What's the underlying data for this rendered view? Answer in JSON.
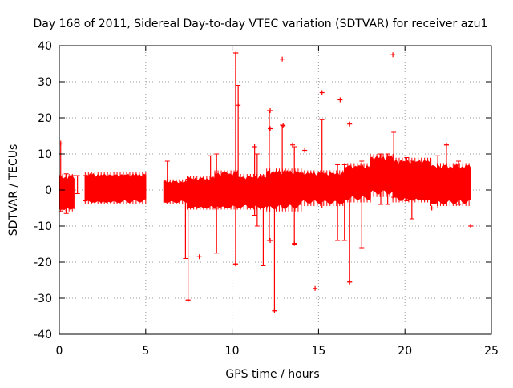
{
  "chart_data": {
    "type": "scatter",
    "title": "Day 168 of 2011, Sidereal Day-to-day VTEC variation (SDTVAR) for receiver azu1",
    "xlabel": "GPS time / hours",
    "ylabel": "SDTVAR / TECUs",
    "xlim": [
      0,
      25
    ],
    "ylim": [
      -40,
      40
    ],
    "xticks": [
      0,
      5,
      10,
      15,
      20,
      25
    ],
    "yticks": [
      -40,
      -30,
      -20,
      -10,
      0,
      10,
      20,
      30,
      40
    ],
    "grid": true,
    "marker": "+",
    "color": "#ff0000",
    "bands": [
      {
        "x0": 0.0,
        "x1": 0.85,
        "upper": 4.0,
        "lower": -5.5
      },
      {
        "x0": 1.5,
        "x1": 5.0,
        "upper": 4.5,
        "lower": -3.5
      },
      {
        "x0": 6.05,
        "x1": 7.4,
        "upper": 2.5,
        "lower": -3.5
      },
      {
        "x0": 7.4,
        "x1": 9.0,
        "upper": 3.5,
        "lower": -5.0
      },
      {
        "x0": 9.0,
        "x1": 10.3,
        "upper": 5.0,
        "lower": -5.0
      },
      {
        "x0": 10.3,
        "x1": 12.0,
        "upper": 4.0,
        "lower": -5.0
      },
      {
        "x0": 12.0,
        "x1": 14.0,
        "upper": 5.5,
        "lower": -5.5
      },
      {
        "x0": 14.0,
        "x1": 16.5,
        "upper": 5.0,
        "lower": -4.0
      },
      {
        "x0": 16.5,
        "x1": 18.0,
        "upper": 7.0,
        "lower": -3.0
      },
      {
        "x0": 18.0,
        "x1": 19.3,
        "upper": 9.5,
        "lower": -1.5
      },
      {
        "x0": 19.3,
        "x1": 21.5,
        "upper": 8.5,
        "lower": -3.0
      },
      {
        "x0": 21.5,
        "x1": 23.8,
        "upper": 7.0,
        "lower": -4.0
      }
    ],
    "spikes": [
      {
        "x": 0.08,
        "y0": -6,
        "y1": 13
      },
      {
        "x": 0.4,
        "y0": -6.5,
        "y1": 4.5
      },
      {
        "x": 0.75,
        "y0": -2,
        "y1": 4
      },
      {
        "x": 1.05,
        "y0": -1,
        "y1": 4
      },
      {
        "x": 1.5,
        "y0": -3,
        "y1": 4
      },
      {
        "x": 6.25,
        "y0": -1,
        "y1": 8
      },
      {
        "x": 7.3,
        "y0": -19,
        "y1": 2
      },
      {
        "x": 7.45,
        "y0": -30.5,
        "y1": 3
      },
      {
        "x": 8.75,
        "y0": -3,
        "y1": 9.5
      },
      {
        "x": 9.1,
        "y0": -17.5,
        "y1": 10
      },
      {
        "x": 10.2,
        "y0": -20.5,
        "y1": 38
      },
      {
        "x": 10.35,
        "y0": -5,
        "y1": 29
      },
      {
        "x": 11.3,
        "y0": -7,
        "y1": 12
      },
      {
        "x": 11.45,
        "y0": -10,
        "y1": 10
      },
      {
        "x": 11.8,
        "y0": -21,
        "y1": 4
      },
      {
        "x": 12.15,
        "y0": -14,
        "y1": 22
      },
      {
        "x": 12.45,
        "y0": -33.5,
        "y1": 3
      },
      {
        "x": 12.9,
        "y0": -5,
        "y1": 18
      },
      {
        "x": 13.6,
        "y0": -15,
        "y1": 12
      },
      {
        "x": 15.2,
        "y0": -5,
        "y1": 19.5
      },
      {
        "x": 16.1,
        "y0": -14,
        "y1": 7
      },
      {
        "x": 16.5,
        "y0": -14,
        "y1": 7
      },
      {
        "x": 16.8,
        "y0": -25.5,
        "y1": 6
      },
      {
        "x": 17.5,
        "y0": -16,
        "y1": 8
      },
      {
        "x": 18.6,
        "y0": -4,
        "y1": 10
      },
      {
        "x": 19.0,
        "y0": -4,
        "y1": 10
      },
      {
        "x": 19.35,
        "y0": -2,
        "y1": 16
      },
      {
        "x": 20.1,
        "y0": -3,
        "y1": 9
      },
      {
        "x": 20.4,
        "y0": -8,
        "y1": 8
      },
      {
        "x": 21.9,
        "y0": -5,
        "y1": 9.5
      },
      {
        "x": 22.4,
        "y0": -2,
        "y1": 12.5
      },
      {
        "x": 23.1,
        "y0": -4,
        "y1": 8
      }
    ],
    "outliers": [
      {
        "x": 10.22,
        "y": 38.0
      },
      {
        "x": 12.9,
        "y": 36.3
      },
      {
        "x": 19.3,
        "y": 37.5
      },
      {
        "x": 15.2,
        "y": 27.0
      },
      {
        "x": 16.25,
        "y": 25.0
      },
      {
        "x": 12.2,
        "y": 22.0
      },
      {
        "x": 10.35,
        "y": 23.5
      },
      {
        "x": 12.2,
        "y": 17.0
      },
      {
        "x": 12.95,
        "y": 17.8
      },
      {
        "x": 16.8,
        "y": 18.3
      },
      {
        "x": 11.3,
        "y": 12.0
      },
      {
        "x": 13.5,
        "y": 12.5
      },
      {
        "x": 14.2,
        "y": 11.0
      },
      {
        "x": 22.4,
        "y": 12.5
      },
      {
        "x": 0.08,
        "y": 13.0
      },
      {
        "x": 12.2,
        "y": -14.0
      },
      {
        "x": 13.6,
        "y": -14.8
      },
      {
        "x": 8.1,
        "y": -18.5
      },
      {
        "x": 14.8,
        "y": -27.3
      },
      {
        "x": 12.45,
        "y": -33.5
      },
      {
        "x": 7.45,
        "y": -30.5
      },
      {
        "x": 16.8,
        "y": -25.5
      },
      {
        "x": 10.2,
        "y": -20.5
      },
      {
        "x": 23.8,
        "y": -10.0
      },
      {
        "x": 21.55,
        "y": -5.0
      }
    ]
  }
}
